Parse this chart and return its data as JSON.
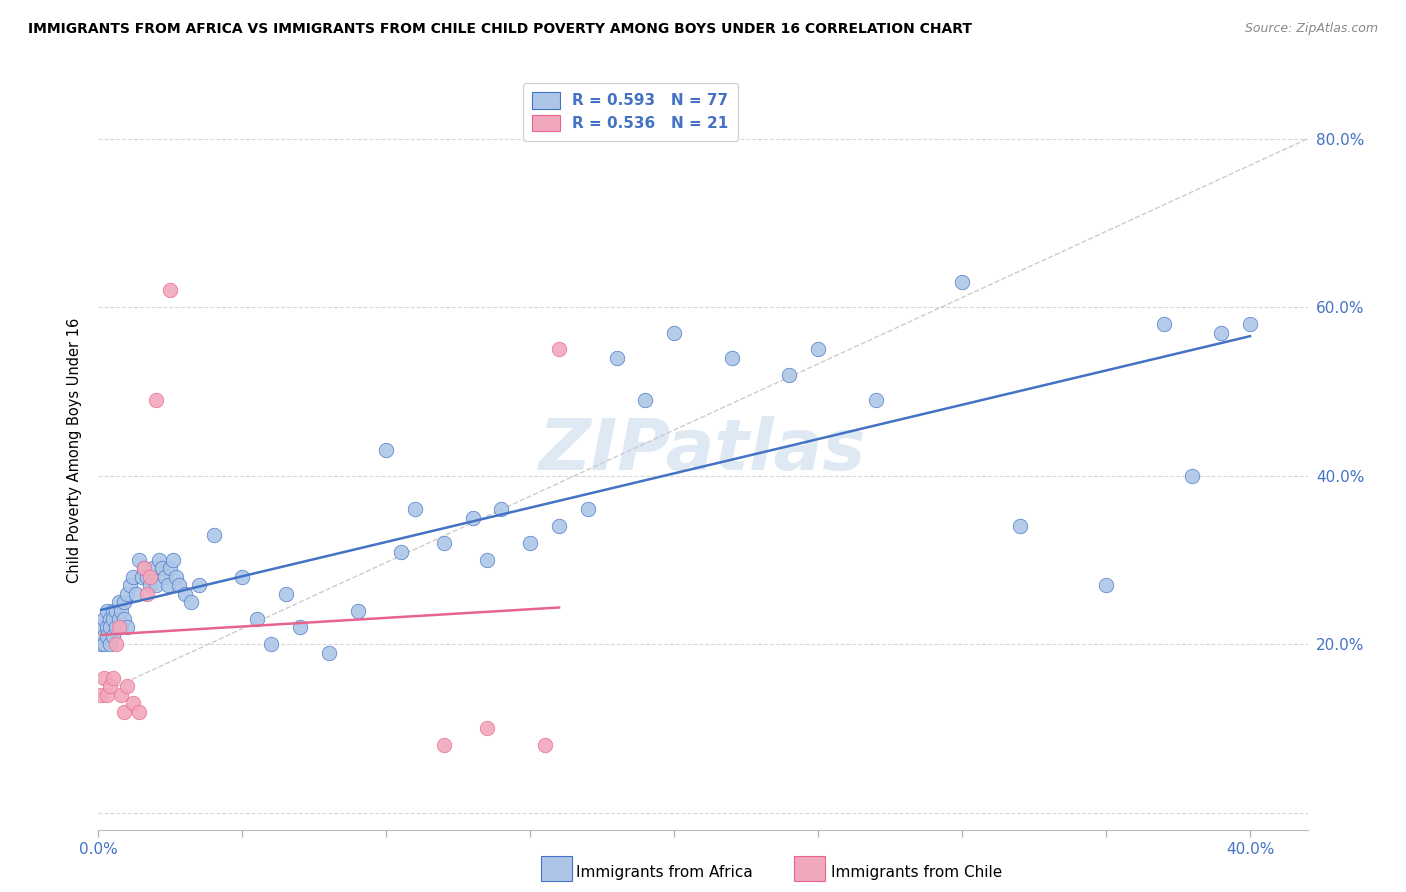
{
  "title": "IMMIGRANTS FROM AFRICA VS IMMIGRANTS FROM CHILE CHILD POVERTY AMONG BOYS UNDER 16 CORRELATION CHART",
  "source": "Source: ZipAtlas.com",
  "ylabel": "Child Poverty Among Boys Under 16",
  "xlim": [
    0.0,
    0.42
  ],
  "ylim": [
    -0.02,
    0.88
  ],
  "R_africa": 0.593,
  "N_africa": 77,
  "R_chile": 0.536,
  "N_chile": 21,
  "color_africa": "#adc6e8",
  "color_chile": "#f2a8bc",
  "trendline_color_africa": "#4472c4",
  "trendline_color_chile": "#e8648c",
  "watermark": "ZIPatlas",
  "africa_x": [
    0.001,
    0.001,
    0.002,
    0.002,
    0.002,
    0.003,
    0.003,
    0.003,
    0.004,
    0.004,
    0.004,
    0.005,
    0.005,
    0.005,
    0.006,
    0.006,
    0.007,
    0.007,
    0.008,
    0.008,
    0.009,
    0.009,
    0.01,
    0.01,
    0.011,
    0.012,
    0.013,
    0.014,
    0.015,
    0.016,
    0.017,
    0.018,
    0.019,
    0.02,
    0.021,
    0.022,
    0.023,
    0.024,
    0.025,
    0.026,
    0.027,
    0.028,
    0.03,
    0.032,
    0.035,
    0.04,
    0.05,
    0.055,
    0.06,
    0.065,
    0.07,
    0.08,
    0.09,
    0.1,
    0.105,
    0.11,
    0.12,
    0.13,
    0.135,
    0.14,
    0.15,
    0.16,
    0.17,
    0.18,
    0.19,
    0.2,
    0.22,
    0.24,
    0.25,
    0.27,
    0.3,
    0.32,
    0.35,
    0.37,
    0.38,
    0.39,
    0.4
  ],
  "africa_y": [
    0.2,
    0.22,
    0.21,
    0.23,
    0.2,
    0.22,
    0.24,
    0.21,
    0.23,
    0.2,
    0.22,
    0.24,
    0.21,
    0.23,
    0.22,
    0.24,
    0.23,
    0.25,
    0.22,
    0.24,
    0.25,
    0.23,
    0.22,
    0.26,
    0.27,
    0.28,
    0.26,
    0.3,
    0.28,
    0.29,
    0.28,
    0.27,
    0.29,
    0.27,
    0.3,
    0.29,
    0.28,
    0.27,
    0.29,
    0.3,
    0.28,
    0.27,
    0.26,
    0.25,
    0.27,
    0.33,
    0.28,
    0.23,
    0.2,
    0.26,
    0.22,
    0.19,
    0.24,
    0.43,
    0.31,
    0.36,
    0.32,
    0.35,
    0.3,
    0.36,
    0.32,
    0.34,
    0.36,
    0.54,
    0.49,
    0.57,
    0.54,
    0.52,
    0.55,
    0.49,
    0.63,
    0.34,
    0.27,
    0.58,
    0.4,
    0.57,
    0.58
  ],
  "chile_x": [
    0.001,
    0.002,
    0.003,
    0.004,
    0.005,
    0.006,
    0.007,
    0.008,
    0.009,
    0.01,
    0.012,
    0.014,
    0.016,
    0.017,
    0.018,
    0.02,
    0.025,
    0.12,
    0.135,
    0.155,
    0.16
  ],
  "chile_y": [
    0.14,
    0.16,
    0.14,
    0.15,
    0.16,
    0.2,
    0.22,
    0.14,
    0.12,
    0.15,
    0.13,
    0.12,
    0.29,
    0.26,
    0.28,
    0.49,
    0.62,
    0.08,
    0.1,
    0.08,
    0.55
  ]
}
